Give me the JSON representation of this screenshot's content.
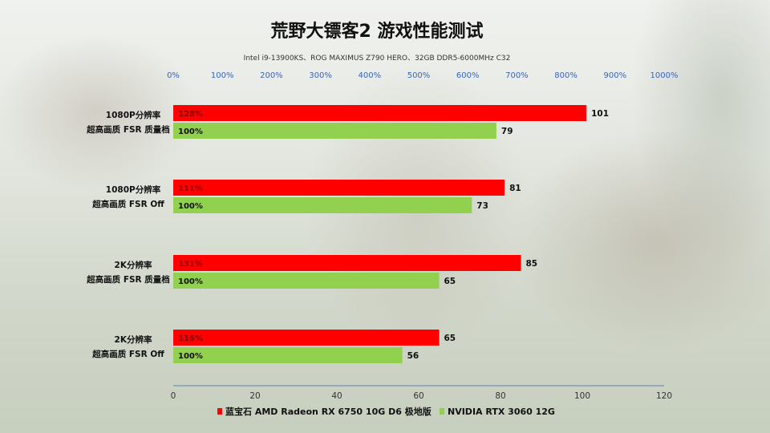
{
  "chart_data": {
    "type": "bar",
    "title": "荒野大镖客2 游戏性能测试",
    "subtitle": "Intel i9-13900KS、ROG  MAXIMUS Z790 HERO、32GB DDR5-6000MHz  C32",
    "orientation": "horizontal",
    "categories": [
      [
        "1080P分辨率",
        "超高画质 FSR 质量档"
      ],
      [
        "1080P分辨率",
        "超高画质 FSR Off"
      ],
      [
        "2K分辨率",
        "超高画质 FSR 质量档"
      ],
      [
        "2K分辨率",
        "超高画质 FSR Off"
      ]
    ],
    "series": [
      {
        "name": "蓝宝石 AMD Radeon RX 6750 10G D6 极地版",
        "color": "#ff0000",
        "values": [
          101,
          81,
          85,
          65
        ],
        "percent_labels": [
          "128%",
          "111%",
          "131%",
          "116%"
        ],
        "percent_label_color": "#8b0000"
      },
      {
        "name": "NVIDIA RTX 3060 12G",
        "color": "#92d050",
        "values": [
          79,
          73,
          65,
          56
        ],
        "percent_labels": [
          "100%",
          "100%",
          "100%",
          "100%"
        ],
        "percent_label_color": "#111111"
      }
    ],
    "bottom_axis": {
      "range": [
        0,
        120
      ],
      "ticks": [
        "0",
        "20",
        "40",
        "60",
        "80",
        "100",
        "120"
      ]
    },
    "top_axis": {
      "range": [
        0,
        1000
      ],
      "ticks": [
        "0%",
        "100%",
        "200%",
        "300%",
        "400%",
        "500%",
        "600%",
        "700%",
        "800%",
        "900%",
        "1000%"
      ]
    },
    "legend_position": "bottom",
    "grid": false
  }
}
